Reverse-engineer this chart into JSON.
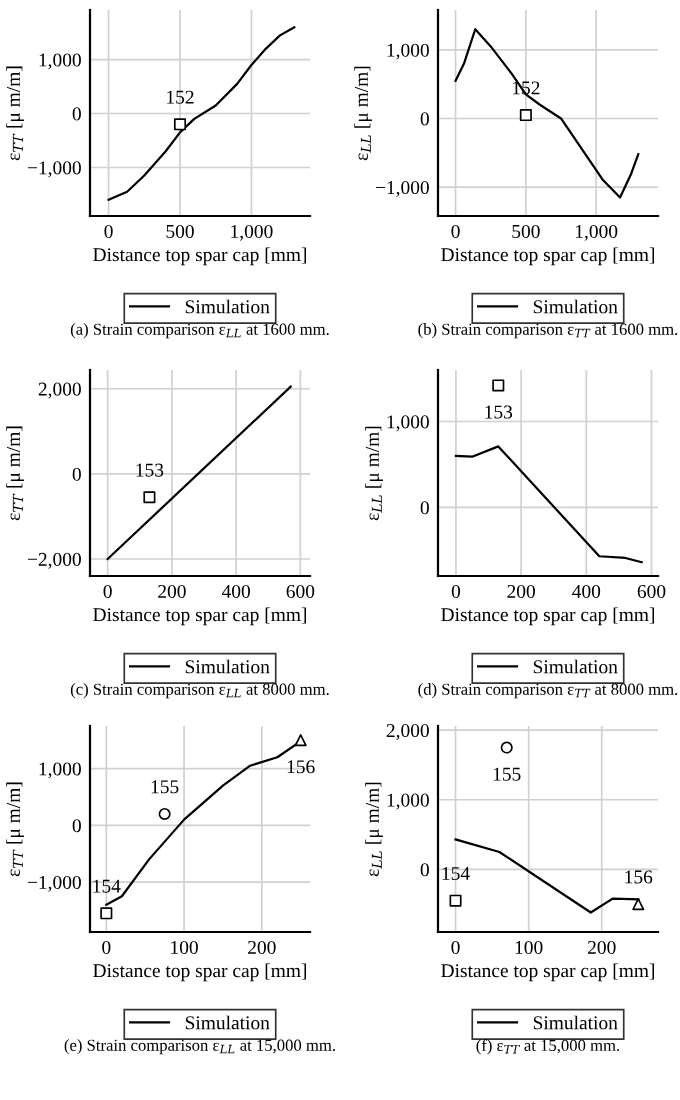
{
  "chart_data": [
    {
      "type": "line",
      "title": "(a) Strain comparison ε$_{LL}$ at 1600 mm.",
      "xlabel": "Distance top spar cap [mm]",
      "ylabel": "ε$_{TT}$ [μ m/m]",
      "xlim": [
        -130,
        1410
      ],
      "ylim": [
        -1900,
        1920
      ],
      "xticks": [
        0,
        500,
        {
          "value": 1000,
          "label": "1,000"
        }
      ],
      "yticks": [
        {
          "value": -1000,
          "label": "−1,000"
        },
        0,
        {
          "value": 1000,
          "label": "1,000"
        }
      ],
      "grid": true,
      "legend": "bottom",
      "series": [
        {
          "name": "Simulation",
          "color": "#000000",
          "x": [
            0,
            130,
            250,
            400,
            500,
            600,
            750,
            900,
            1000,
            1100,
            1200,
            1300
          ],
          "values": [
            -1600,
            -1450,
            -1150,
            -700,
            -350,
            -100,
            150,
            550,
            900,
            1200,
            1450,
            1600
          ]
        },
        {
          "type": "scatter",
          "marker": "square",
          "color": "#000000",
          "x": [
            500
          ],
          "values": [
            -200
          ]
        }
      ],
      "annotations": [
        {
          "text": "152",
          "x": 500,
          "y": -200
        }
      ]
    },
    {
      "type": "line",
      "title": "(b) Strain comparison ε$_{TT}$ at 1600 mm.",
      "xlabel": "Distance top spar cap [mm]",
      "ylabel": "ε$_{LL}$ [μ m/m]",
      "xlim": [
        -125,
        1440
      ],
      "ylim": [
        -1420,
        1580
      ],
      "xticks": [
        0,
        500,
        {
          "value": 1000,
          "label": "1,000"
        }
      ],
      "yticks": [
        {
          "value": -1000,
          "label": "−1,000"
        },
        0,
        {
          "value": 1000,
          "label": "1,000"
        }
      ],
      "grid": true,
      "legend": "bottom",
      "series": [
        {
          "name": "Simulation",
          "color": "#000000",
          "x": [
            0,
            60,
            140,
            250,
            400,
            500,
            600,
            750,
            900,
            1050,
            1170,
            1250,
            1300
          ],
          "values": [
            550,
            800,
            1300,
            1050,
            650,
            350,
            200,
            0,
            -450,
            -900,
            -1150,
            -800,
            -520
          ]
        },
        {
          "type": "scatter",
          "marker": "square",
          "color": "#000000",
          "x": [
            500
          ],
          "values": [
            50
          ]
        }
      ],
      "annotations": [
        {
          "text": "152",
          "x": 500,
          "y": 50
        }
      ]
    },
    {
      "type": "line",
      "title": "(c) Strain comparison ε$_{LL}$ at 8000 mm.",
      "xlabel": "Distance top spar cap [mm]",
      "ylabel": "ε$_{TT}$ [μ m/m]",
      "xlim": [
        -55,
        630
      ],
      "ylim": [
        -2400,
        2440
      ],
      "xticks": [
        0,
        200,
        400,
        600
      ],
      "yticks": [
        {
          "value": -2000,
          "label": "−2,000"
        },
        0,
        {
          "value": 2000,
          "label": "2,000"
        }
      ],
      "grid": true,
      "legend": "bottom",
      "series": [
        {
          "name": "Simulation",
          "color": "#000000",
          "x": [
            0,
            570
          ],
          "values": [
            -2000,
            2050
          ]
        },
        {
          "type": "scatter",
          "marker": "square",
          "color": "#000000",
          "x": [
            130
          ],
          "values": [
            -550
          ]
        }
      ],
      "annotations": [
        {
          "text": "153",
          "x": 130,
          "y": -550
        }
      ]
    },
    {
      "type": "line",
      "title": "(d) Strain comparison ε$_{TT}$ at 8000 mm.",
      "xlabel": "Distance top spar cap [mm]",
      "ylabel": "ε$_{LL}$ [μ m/m]",
      "xlim": [
        -55,
        620
      ],
      "ylim": [
        -800,
        1600
      ],
      "xticks": [
        0,
        200,
        400,
        600
      ],
      "yticks": [
        0,
        {
          "value": 1000,
          "label": "1,000"
        }
      ],
      "grid": true,
      "legend": "bottom",
      "series": [
        {
          "name": "Simulation",
          "color": "#000000",
          "x": [
            0,
            50,
            130,
            440,
            520,
            570
          ],
          "values": [
            600,
            590,
            710,
            -570,
            -590,
            -640
          ]
        },
        {
          "type": "scatter",
          "marker": "square",
          "color": "#000000",
          "x": [
            130
          ],
          "values": [
            1420
          ]
        }
      ],
      "annotations": [
        {
          "text": "153",
          "x": 130,
          "y": 1420
        }
      ]
    },
    {
      "type": "line",
      "title": "(e) Strain comparison ε$_{LL}$ at 15,000 mm.",
      "xlabel": "Distance top spar cap [mm]",
      "ylabel": "ε$_{TT}$ [μ m/m]",
      "xlim": [
        -21,
        262
      ],
      "ylim": [
        -1880,
        1750
      ],
      "xticks": [
        0,
        100,
        200
      ],
      "yticks": [
        {
          "value": -1000,
          "label": "−1,000"
        },
        0,
        {
          "value": 1000,
          "label": "1,000"
        }
      ],
      "grid": true,
      "legend": "bottom",
      "series": [
        {
          "name": "Simulation",
          "color": "#000000",
          "x": [
            0,
            20,
            55,
            100,
            150,
            185,
            220,
            250
          ],
          "values": [
            -1400,
            -1250,
            -600,
            100,
            700,
            1050,
            1200,
            1480
          ]
        },
        {
          "type": "scatter",
          "marker": "square",
          "color": "#000000",
          "x": [
            0
          ],
          "values": [
            -1550
          ]
        },
        {
          "type": "scatter",
          "marker": "circle",
          "color": "#000000",
          "x": [
            75
          ],
          "values": [
            200
          ]
        },
        {
          "type": "scatter",
          "marker": "triangle",
          "color": "#000000",
          "x": [
            250
          ],
          "values": [
            1500
          ]
        }
      ],
      "annotations": [
        {
          "text": "154",
          "x": 0,
          "y": -1550
        },
        {
          "text": "155",
          "x": 75,
          "y": 200
        },
        {
          "text": "156",
          "x": 250,
          "y": 1500
        }
      ]
    },
    {
      "type": "line",
      "title": "(f) ε$_{TT}$ at 15,000 mm.",
      "xlabel": "Distance top spar cap [mm]",
      "ylabel": "ε$_{LL}$ [μ m/m]",
      "xlim": [
        -24,
        277
      ],
      "ylim": [
        -900,
        2060
      ],
      "xticks": [
        0,
        100,
        200
      ],
      "yticks": [
        0,
        {
          "value": 1000,
          "label": "1,000"
        },
        {
          "value": 2000,
          "label": "2,000"
        }
      ],
      "grid": true,
      "legend": "bottom",
      "series": [
        {
          "name": "Simulation",
          "color": "#000000",
          "x": [
            0,
            60,
            185,
            215,
            250
          ],
          "values": [
            430,
            250,
            -620,
            -420,
            -430
          ]
        },
        {
          "type": "scatter",
          "marker": "square",
          "color": "#000000",
          "x": [
            0
          ],
          "values": [
            -450
          ]
        },
        {
          "type": "scatter",
          "marker": "circle",
          "color": "#000000",
          "x": [
            70
          ],
          "values": [
            1750
          ]
        },
        {
          "type": "scatter",
          "marker": "triangle",
          "color": "#000000",
          "x": [
            250
          ],
          "values": [
            -500
          ]
        }
      ],
      "annotations": [
        {
          "text": "154",
          "x": 0,
          "y": -450
        },
        {
          "text": "155",
          "x": 70,
          "y": 1750
        },
        {
          "text": "156",
          "x": 250,
          "y": -500
        }
      ]
    }
  ]
}
